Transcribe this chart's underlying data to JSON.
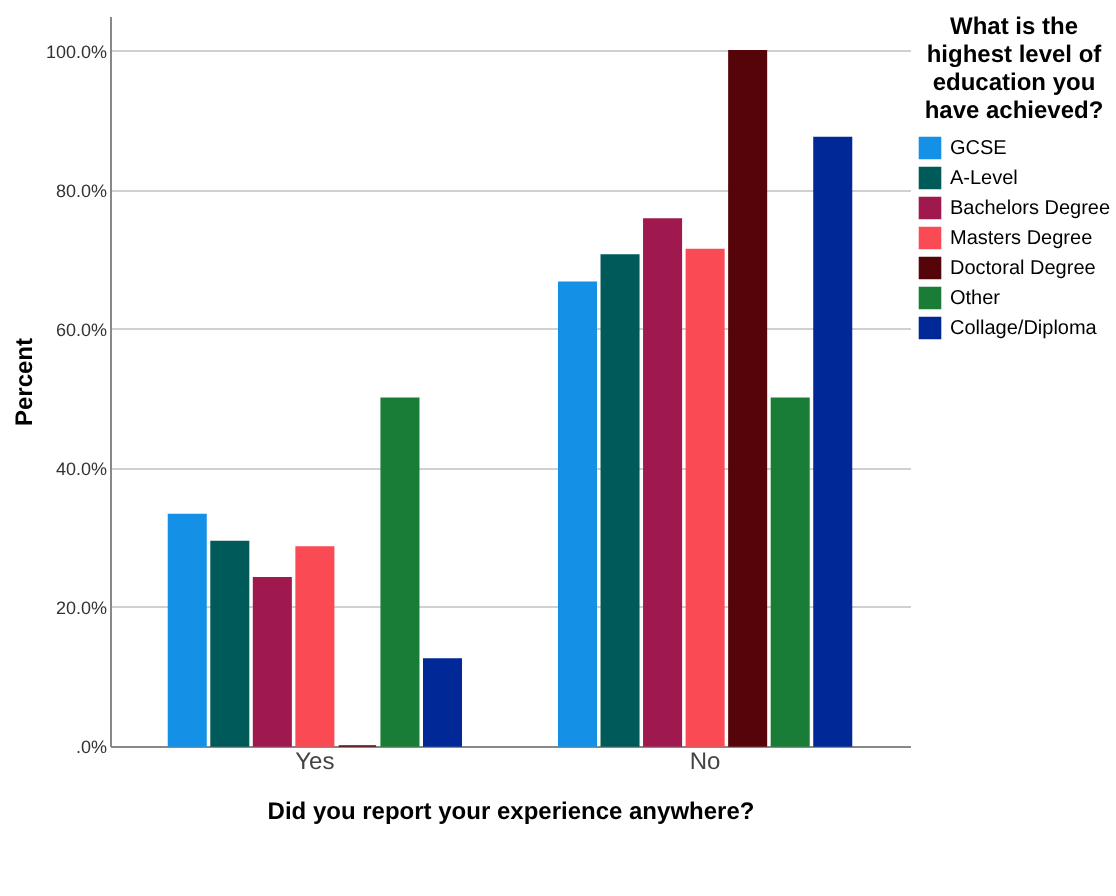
{
  "chart_data": {
    "type": "bar",
    "xlabel": "Did you report your experience anywhere?",
    "ylabel": "Percent",
    "legend_title": "What is the highest level of education you have achieved?",
    "categories": [
      "Yes",
      "No"
    ],
    "series": [
      {
        "name": "GCSE",
        "color": "#1490e6",
        "values": [
          33.3,
          66.7
        ]
      },
      {
        "name": "A-Level",
        "color": "#005a5a",
        "values": [
          29.4,
          70.6
        ]
      },
      {
        "name": "Bachelors Degree",
        "color": "#a0194e",
        "values": [
          24.2,
          75.8
        ]
      },
      {
        "name": "Masters Degree",
        "color": "#fa4b55",
        "values": [
          28.6,
          71.4
        ]
      },
      {
        "name": "Doctoral Degree",
        "color": "#55050a",
        "values": [
          0,
          100
        ]
      },
      {
        "name": "Other",
        "color": "#197d37",
        "values": [
          50,
          50
        ]
      },
      {
        "name": "Collage/Diploma",
        "color": "#002896",
        "values": [
          12.5,
          87.5
        ]
      }
    ],
    "ylim": [
      0,
      105
    ],
    "yticks": [
      {
        "value": 0,
        "label": ".0%"
      },
      {
        "value": 20,
        "label": "20.0%"
      },
      {
        "value": 40,
        "label": "40.0%"
      },
      {
        "value": 60,
        "label": "60.0%"
      },
      {
        "value": 80,
        "label": "80.0%"
      },
      {
        "value": 100,
        "label": "100.0%"
      }
    ],
    "grid": "y",
    "legend": "right"
  }
}
